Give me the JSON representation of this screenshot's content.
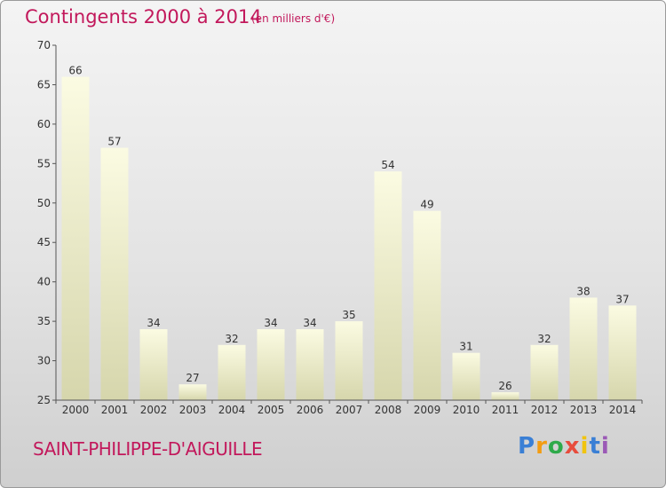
{
  "header": {
    "title": "Contingents 2000 à 2014",
    "subtitle": "(en milliers d'€)"
  },
  "footer": {
    "location": "SAINT-PHILIPPE-D'AIGUILLE",
    "logo_letters": [
      "P",
      "r",
      "o",
      "x",
      "i",
      "t",
      "i"
    ],
    "logo_colors": [
      "#3a7fd5",
      "#f39c12",
      "#2eaa4a",
      "#e74c3c",
      "#f1c40f",
      "#3a7fd5",
      "#9b59b6"
    ]
  },
  "chart_data": {
    "type": "bar",
    "title": "Contingents 2000 à 2014",
    "subtitle": "(en milliers d'€)",
    "categories": [
      "2000",
      "2001",
      "2002",
      "2003",
      "2004",
      "2005",
      "2006",
      "2007",
      "2008",
      "2009",
      "2010",
      "2011",
      "2012",
      "2013",
      "2014"
    ],
    "values": [
      66,
      57,
      34,
      27,
      32,
      34,
      34,
      35,
      54,
      49,
      31,
      26,
      32,
      38,
      37
    ],
    "ylim": [
      25,
      70
    ],
    "yticks": [
      25,
      30,
      35,
      40,
      45,
      50,
      55,
      60,
      65,
      70
    ],
    "grid": false,
    "bar_color": "#f5f5c8"
  }
}
